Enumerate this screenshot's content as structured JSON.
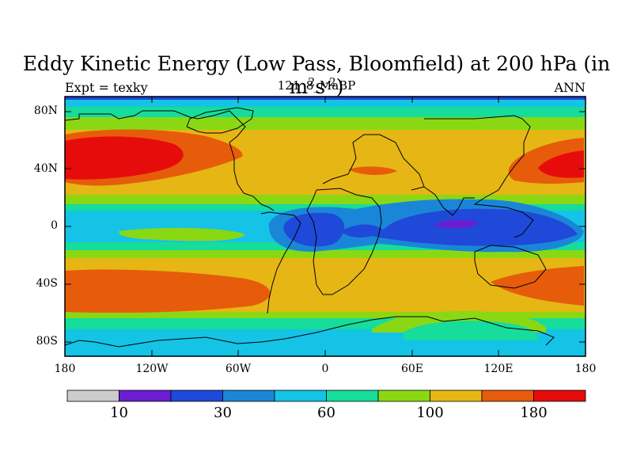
{
  "title": {
    "text": "Eddy Kinetic Energy (Low Pass, Bloomfield) at 200 hPa (in m",
    "sup1": "2",
    "mid": "s",
    "sup2": "-2",
    "close": ")"
  },
  "subtitle": {
    "left": "Expt = texky",
    "center": "121_8_MaBP",
    "right": "ANN"
  },
  "axes": {
    "y_ticks": [
      {
        "label": "80N",
        "lat": 80
      },
      {
        "label": "40N",
        "lat": 40
      },
      {
        "label": "0",
        "lat": 0
      },
      {
        "label": "40S",
        "lat": -40
      },
      {
        "label": "80S",
        "lat": -80
      }
    ],
    "x_ticks": [
      {
        "label": "180",
        "lon": -180
      },
      {
        "label": "120W",
        "lon": -120
      },
      {
        "label": "60W",
        "lon": -60
      },
      {
        "label": "0",
        "lon": 0
      },
      {
        "label": "60E",
        "lon": 60
      },
      {
        "label": "120E",
        "lon": 120
      },
      {
        "label": "180",
        "lon": 180
      }
    ]
  },
  "colorbar": {
    "colors": [
      "#cccccc",
      "#6a1ed0",
      "#1f49d8",
      "#1a86d8",
      "#14c3e6",
      "#16dc9c",
      "#8ad814",
      "#e6b614",
      "#e65c0a",
      "#e60c0c"
    ],
    "labels": [
      {
        "text": "10",
        "boundary": 1
      },
      {
        "text": "30",
        "boundary": 3
      },
      {
        "text": "60",
        "boundary": 5
      },
      {
        "text": "100",
        "boundary": 7
      },
      {
        "text": "180",
        "boundary": 9
      }
    ]
  },
  "map_colors": {
    "background_band": "#e6b614",
    "coast": "#000000"
  }
}
